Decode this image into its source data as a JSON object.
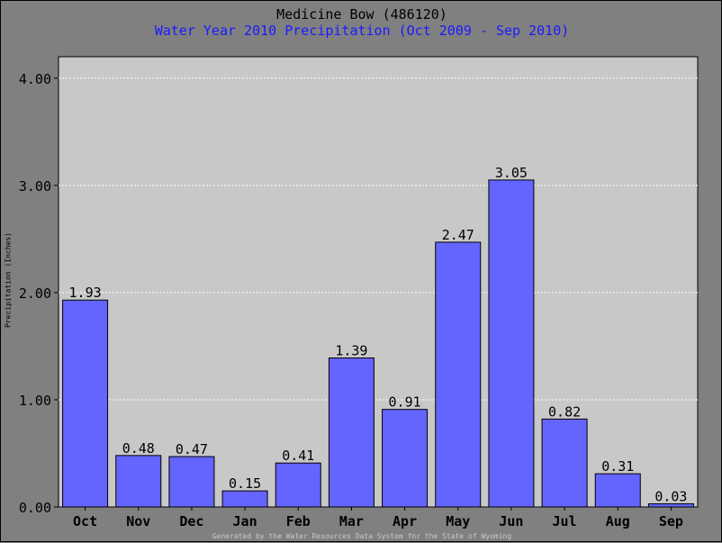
{
  "title": "Medicine Bow (486120)",
  "subtitle": "Water Year 2010 Precipitation (Oct 2009 - Sep 2010)",
  "footer": "Generated by the Water Resources Data System for the State of Wyoming",
  "colors": {
    "plot_background": "#c8c8c8",
    "page_background": "#808080",
    "bar_fill": "#6464ff",
    "subtitle": "#1a1aff",
    "gridline": "#ffffff"
  },
  "chart_data": {
    "type": "bar",
    "categories": [
      "Oct",
      "Nov",
      "Dec",
      "Jan",
      "Feb",
      "Mar",
      "Apr",
      "May",
      "Jun",
      "Jul",
      "Aug",
      "Sep"
    ],
    "values": [
      1.93,
      0.48,
      0.47,
      0.15,
      0.41,
      1.39,
      0.91,
      2.47,
      3.05,
      0.82,
      0.31,
      0.03
    ],
    "data_labels": [
      "1.93",
      "0.48",
      "0.47",
      "0.15",
      "0.41",
      "1.39",
      "0.91",
      "2.47",
      "3.05",
      "0.82",
      "0.31",
      "0.03"
    ],
    "ylabel": "Precipitation (Inches)",
    "xlabel": "",
    "ylim": [
      0,
      4.2
    ],
    "yticks": [
      0,
      1,
      2,
      3,
      4
    ],
    "ytick_labels": [
      "0.00",
      "1.00",
      "2.00",
      "3.00",
      "4.00"
    ],
    "grid": "horizontal dotted"
  }
}
